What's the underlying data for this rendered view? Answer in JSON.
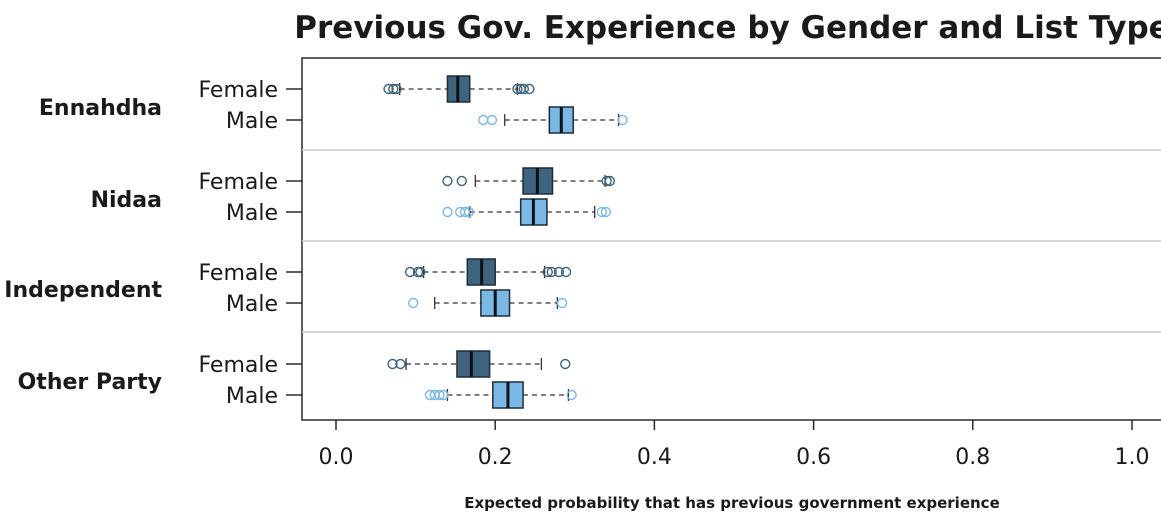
{
  "chart_data": {
    "type": "boxplot",
    "title": "Previous Gov. Experience by Gender and List Type",
    "xlabel": "Expected probability that has previous government experience",
    "xlim": [
      0.0,
      1.0
    ],
    "xticks": [
      "0.0",
      "0.2",
      "0.4",
      "0.6",
      "0.8",
      "1.0"
    ],
    "colors": {
      "Female": "#3f6480",
      "Male": "#7ab8e6",
      "border": "#1e2c38",
      "separator": "#c8c8c8"
    },
    "groups": [
      {
        "name": "Ennahdha",
        "rows": [
          {
            "label": "Female",
            "whisker_low": 0.08,
            "q1": 0.14,
            "median": 0.153,
            "q3": 0.168,
            "whisker_high": 0.228,
            "outliers": [
              0.066,
              0.072,
              0.076,
              0.228,
              0.232,
              0.236,
              0.243
            ]
          },
          {
            "label": "Male",
            "whisker_low": 0.212,
            "q1": 0.268,
            "median": 0.283,
            "q3": 0.298,
            "whisker_high": 0.355,
            "outliers": [
              0.185,
              0.196,
              0.36
            ]
          }
        ]
      },
      {
        "name": "Nidaa",
        "rows": [
          {
            "label": "Female",
            "whisker_low": 0.175,
            "q1": 0.235,
            "median": 0.253,
            "q3": 0.272,
            "whisker_high": 0.338,
            "outliers": [
              0.14,
              0.158,
              0.34,
              0.344
            ]
          },
          {
            "label": "Male",
            "whisker_low": 0.168,
            "q1": 0.232,
            "median": 0.248,
            "q3": 0.265,
            "whisker_high": 0.325,
            "outliers": [
              0.14,
              0.156,
              0.162,
              0.167,
              0.334,
              0.339
            ]
          }
        ]
      },
      {
        "name": "Independent",
        "rows": [
          {
            "label": "Female",
            "whisker_low": 0.11,
            "q1": 0.165,
            "median": 0.183,
            "q3": 0.2,
            "whisker_high": 0.262,
            "outliers": [
              0.093,
              0.103,
              0.106,
              0.266,
              0.271,
              0.28,
              0.289
            ]
          },
          {
            "label": "Male",
            "whisker_low": 0.124,
            "q1": 0.182,
            "median": 0.2,
            "q3": 0.218,
            "whisker_high": 0.278,
            "outliers": [
              0.097,
              0.284
            ]
          }
        ]
      },
      {
        "name": "Other Party",
        "rows": [
          {
            "label": "Female",
            "whisker_low": 0.088,
            "q1": 0.152,
            "median": 0.17,
            "q3": 0.193,
            "whisker_high": 0.258,
            "outliers": [
              0.071,
              0.081,
              0.288
            ]
          },
          {
            "label": "Male",
            "whisker_low": 0.14,
            "q1": 0.197,
            "median": 0.216,
            "q3": 0.235,
            "whisker_high": 0.292,
            "outliers": [
              0.118,
              0.124,
              0.13,
              0.135,
              0.296
            ]
          }
        ]
      }
    ]
  }
}
